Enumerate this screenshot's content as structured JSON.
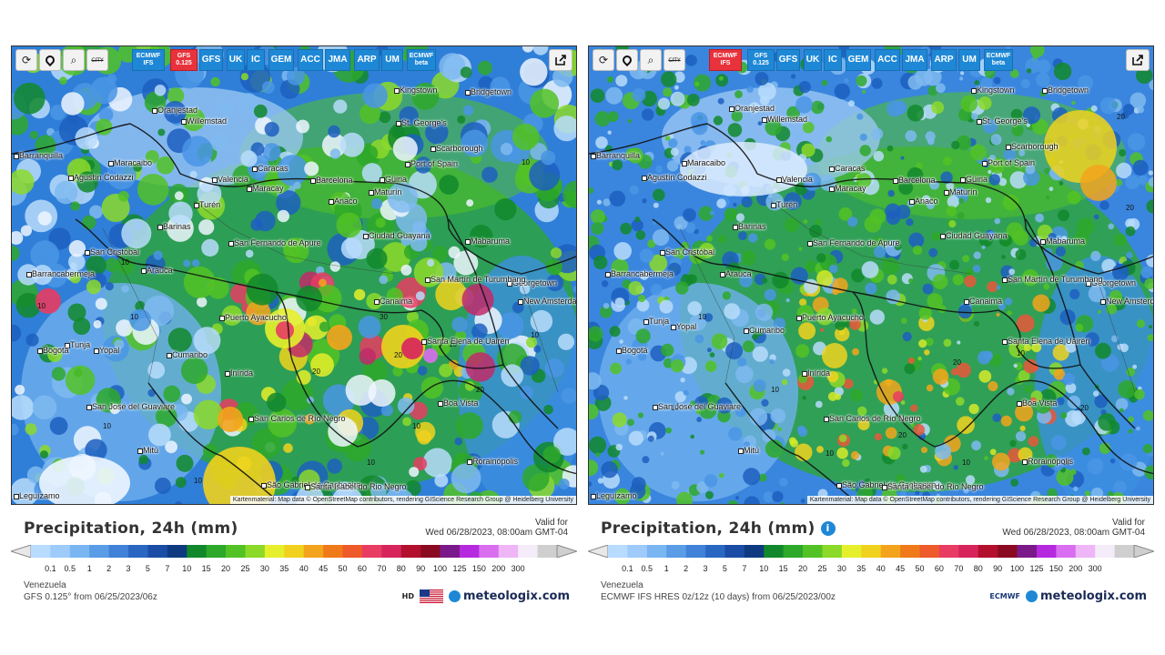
{
  "panels": [
    {
      "id": "left",
      "toolbar": {
        "tools": [
          "reload-icon",
          "locate-icon",
          "zoom-icon",
          "city-toggle-icon"
        ],
        "city_label": "CITY",
        "models": [
          {
            "label": "ECMWF IFS",
            "active": false,
            "small": true
          },
          {
            "label": "GFS 0.125",
            "active": true,
            "small": true
          },
          {
            "label": "GFS",
            "active": false
          },
          {
            "label": "UK",
            "active": false
          },
          {
            "label": "IC",
            "active": false
          },
          {
            "label": "GEM",
            "active": false
          },
          {
            "label": "ACC",
            "active": false
          },
          {
            "label": "JMA",
            "active": false
          },
          {
            "label": "ARP",
            "active": false
          },
          {
            "label": "UM",
            "active": false
          },
          {
            "label": "ECMWF beta",
            "active": false,
            "small": true
          }
        ]
      },
      "attribution": "Kartenmaterial: Map data © OpenStreetMap contributors, rendering GIScience Research Group @ Heidelberg University",
      "title": "Precipitation, 24h (mm)",
      "valid_label": "Valid for",
      "valid_time": "Wed 06/28/2023, 08:00am GMT-04",
      "region": "Venezuela",
      "model_run": "GFS 0.125° from 06/25/2023/06z",
      "brand": "meteologix.com",
      "hd_label": "HD",
      "show_info": false
    },
    {
      "id": "right",
      "toolbar": {
        "tools": [
          "reload-icon",
          "locate-icon",
          "zoom-icon",
          "city-toggle-icon"
        ],
        "city_label": "CITY",
        "models": [
          {
            "label": "ECMWF IFS",
            "active": true,
            "small": true
          },
          {
            "label": "GFS 0.125",
            "active": false,
            "small": true
          },
          {
            "label": "GFS",
            "active": false
          },
          {
            "label": "UK",
            "active": false
          },
          {
            "label": "IC",
            "active": false
          },
          {
            "label": "GEM",
            "active": false
          },
          {
            "label": "ACC",
            "active": false
          },
          {
            "label": "JMA",
            "active": false
          },
          {
            "label": "ARP",
            "active": false
          },
          {
            "label": "UM",
            "active": false
          },
          {
            "label": "ECMWF beta",
            "active": false,
            "small": true
          }
        ]
      },
      "attribution": "Kartenmaterial: Map data © OpenStreetMap contributors, rendering GIScience Research Group @ Heidelberg University",
      "title": "Precipitation, 24h (mm)",
      "valid_label": "Valid for",
      "valid_time": "Wed 06/28/2023, 08:00am GMT-04",
      "region": "Venezuela",
      "model_run": "ECMWF IFS HRES 0z/12z (10 days) from 06/25/2023/00z",
      "brand": "meteologix.com",
      "ecmwf_label": "ECMWF",
      "show_info": true
    }
  ],
  "cities": [
    "Oranjestad",
    "Willemstad",
    "Kingstown",
    "Bridgetown",
    "St. George's",
    "Scarborough",
    "Port of Spain",
    "Barranquilla",
    "Maracaibo",
    "Agustín Codazzi",
    "Caracas",
    "Valencia",
    "Maracay",
    "Barcelona",
    "Güiria",
    "Maturín",
    "Anaco",
    "Turén",
    "Barinas",
    "Ciudad Guayana",
    "Mabaruma",
    "San Fernando de Apure",
    "San Cristóbal",
    "Barrancabermeja",
    "Arauca",
    "Georgetown",
    "New Amsterdam",
    "San Martín de Turumbang",
    "Canaima",
    "Puerto Ayacucho",
    "Tunja",
    "Yopal",
    "Bogotá",
    "Cumaribo",
    "Santa Elena de Uairén",
    "Inírida",
    "Boa Vista",
    "San José del Guaviare",
    "San Carlos de Río Negro",
    "Mitú",
    "Rorainópolis",
    "São Gabriel da Cachoeira",
    "Santa Isabel do Rio Negro",
    "Leguízamo"
  ],
  "legend": {
    "ticks": [
      "0.1",
      "0.5",
      "1",
      "2",
      "3",
      "5",
      "7",
      "10",
      "15",
      "20",
      "25",
      "30",
      "35",
      "40",
      "45",
      "50",
      "60",
      "70",
      "80",
      "90",
      "100",
      "125",
      "150",
      "200",
      "300"
    ],
    "colors": [
      "#b7dcff",
      "#9ecbfa",
      "#7ab6f2",
      "#5a9ce6",
      "#3f82d8",
      "#2a67c2",
      "#1b4da6",
      "#0f3a80",
      "#12882c",
      "#2ea82a",
      "#52c225",
      "#8cd92a",
      "#e6ef2b",
      "#f0d21e",
      "#f3a41c",
      "#f07a1a",
      "#ee5a2a",
      "#e83c63",
      "#d8245d",
      "#b2102c",
      "#8a0a22",
      "#7a1a8a",
      "#b62adf",
      "#da6ef0",
      "#eeb6f7",
      "#f4ecf8",
      "#cfcfcf"
    ]
  },
  "colors": {
    "model_button": "#1e88d6",
    "model_active": "#e8323c",
    "brand": "#1a2a55"
  }
}
